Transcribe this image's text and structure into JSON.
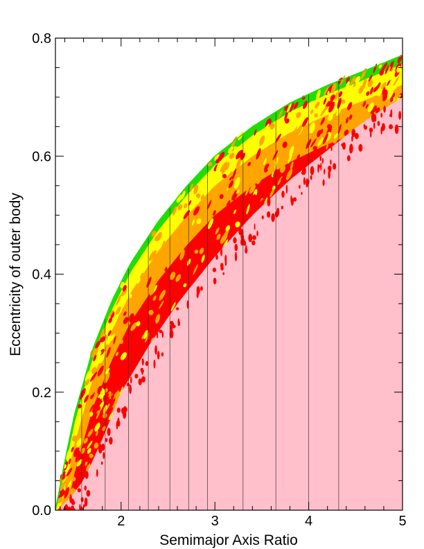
{
  "chart_data": {
    "type": "heatmap",
    "title": "",
    "xlabel": "Semimajor Axis Ratio",
    "ylabel": "Eccentricity of outer body",
    "xlim": [
      1.3,
      5.0
    ],
    "ylim": [
      0.0,
      0.8
    ],
    "x_ticks": [
      {
        "value": 2,
        "label": "2"
      },
      {
        "value": 3,
        "label": "3"
      },
      {
        "value": 4,
        "label": "4"
      },
      {
        "value": 5,
        "label": "5"
      }
    ],
    "y_ticks": [
      {
        "value": 0.0,
        "label": "0.0"
      },
      {
        "value": 0.2,
        "label": "0.2"
      },
      {
        "value": 0.4,
        "label": "0.4"
      },
      {
        "value": 0.6,
        "label": "0.6"
      },
      {
        "value": 0.8,
        "label": "0.8"
      }
    ],
    "boundary_curve": {
      "x": [
        1.3,
        1.4,
        1.5,
        1.7,
        1.9,
        2.1,
        2.4,
        2.7,
        3.0,
        3.4,
        3.8,
        4.2,
        4.6,
        5.0
      ],
      "y": [
        0.0,
        0.083,
        0.16,
        0.274,
        0.354,
        0.418,
        0.49,
        0.549,
        0.6,
        0.65,
        0.69,
        0.72,
        0.745,
        0.771
      ]
    },
    "stable_region_edge": {
      "x": [
        1.32,
        1.45,
        1.6,
        1.8,
        2.0,
        2.3,
        2.6,
        3.0,
        3.4,
        3.8,
        4.2,
        4.6,
        5.0
      ],
      "y": [
        0.0,
        0.02,
        0.05,
        0.12,
        0.2,
        0.28,
        0.35,
        0.43,
        0.5,
        0.56,
        0.61,
        0.66,
        0.7
      ]
    },
    "bands": [
      {
        "name": "band-green",
        "color": "#22dd00",
        "depth": 0.015
      },
      {
        "name": "band-yellow",
        "color": "#ffff00",
        "depth": 0.05
      },
      {
        "name": "band-orange",
        "color": "#ffa500",
        "depth": 0.1
      },
      {
        "name": "band-red",
        "color": "#ff0000",
        "depth": 0.2
      }
    ],
    "stable_color": "#ffc0cb",
    "resonance_lines_x": [
      1.58,
      1.83,
      2.08,
      2.29,
      2.52,
      2.72,
      2.92,
      3.3,
      3.65,
      4.0,
      4.32
    ]
  }
}
